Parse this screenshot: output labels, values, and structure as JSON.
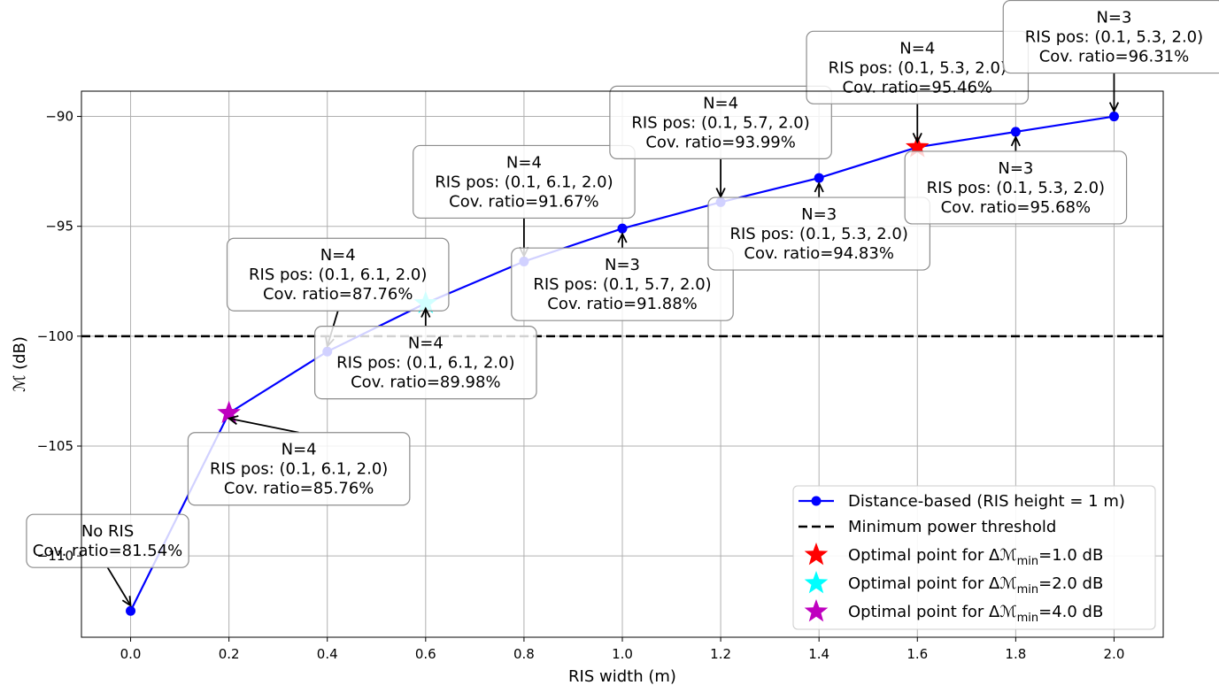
{
  "chart_data": {
    "type": "line",
    "xlabel": "RIS width (m)",
    "ylabel": "ℳ (dB)",
    "xlim": [
      -0.1,
      2.1
    ],
    "ylim": [
      -113.7,
      -88.85
    ],
    "x_ticks": [
      0.0,
      0.2,
      0.4,
      0.6,
      0.8,
      1.0,
      1.2,
      1.4,
      1.6,
      1.8,
      2.0
    ],
    "x_tick_labels": [
      "0.0",
      "0.2",
      "0.4",
      "0.6",
      "0.8",
      "1.0",
      "1.2",
      "1.4",
      "1.6",
      "1.8",
      "2.0"
    ],
    "y_ticks": [
      -110,
      -105,
      -100,
      -95,
      -90
    ],
    "y_tick_labels": [
      "−110",
      "−105",
      "−100",
      "−95",
      "−90"
    ],
    "grid": true,
    "legend_position": "lower-right",
    "series": [
      {
        "name": "Distance-based (RIS height = 1 m)",
        "color": "#0000ff",
        "marker": "circle",
        "x": [
          0.0,
          0.2,
          0.4,
          0.6,
          0.8,
          1.0,
          1.2,
          1.4,
          1.6,
          1.8,
          2.0
        ],
        "y": [
          -112.5,
          -103.5,
          -100.7,
          -98.5,
          -96.6,
          -95.1,
          -93.9,
          -92.8,
          -91.4,
          -90.7,
          -90.0
        ]
      }
    ],
    "threshold": {
      "name": "Minimum power threshold",
      "y": -100,
      "color": "#000000",
      "style": "dashed"
    },
    "optimal_points": [
      {
        "name_prefix": "Optimal point for Δℳ",
        "name_sub": "min",
        "name_suffix": "=1.0 dB",
        "x": 1.6,
        "y": -91.4,
        "color": "#ff0000"
      },
      {
        "name_prefix": "Optimal point for Δℳ",
        "name_sub": "min",
        "name_suffix": "=2.0 dB",
        "x": 0.6,
        "y": -98.5,
        "color": "#00ffff"
      },
      {
        "name_prefix": "Optimal point for Δℳ",
        "name_sub": "min",
        "name_suffix": "=4.0 dB",
        "x": 0.2,
        "y": -103.5,
        "color": "#bf00bf"
      }
    ],
    "annotations": [
      {
        "x": 0.0,
        "y": -112.5,
        "lines": [
          "No RIS",
          "Cov. ratio=81.54%"
        ]
      },
      {
        "x": 0.2,
        "y": -103.5,
        "lines": [
          "N=4",
          "RIS pos: (0.1, 6.1, 2.0)",
          "Cov. ratio=85.76%"
        ]
      },
      {
        "x": 0.4,
        "y": -100.7,
        "lines": [
          "N=4",
          "RIS pos: (0.1, 6.1, 2.0)",
          "Cov. ratio=87.76%"
        ]
      },
      {
        "x": 0.6,
        "y": -98.5,
        "lines": [
          "N=4",
          "RIS pos: (0.1, 6.1, 2.0)",
          "Cov. ratio=89.98%"
        ]
      },
      {
        "x": 0.8,
        "y": -96.6,
        "lines": [
          "N=4",
          "RIS pos: (0.1, 6.1, 2.0)",
          "Cov. ratio=91.67%"
        ]
      },
      {
        "x": 1.0,
        "y": -95.1,
        "lines": [
          "N=3",
          "RIS pos: (0.1, 5.7, 2.0)",
          "Cov. ratio=91.88%"
        ]
      },
      {
        "x": 1.2,
        "y": -93.9,
        "lines": [
          "N=4",
          "RIS pos: (0.1, 5.7, 2.0)",
          "Cov. ratio=93.99%"
        ]
      },
      {
        "x": 1.4,
        "y": -92.8,
        "lines": [
          "N=3",
          "RIS pos: (0.1, 5.3, 2.0)",
          "Cov. ratio=94.83%"
        ]
      },
      {
        "x": 1.6,
        "y": -91.4,
        "lines": [
          "N=4",
          "RIS pos: (0.1, 5.3, 2.0)",
          "Cov. ratio=95.46%"
        ]
      },
      {
        "x": 1.8,
        "y": -90.7,
        "lines": [
          "N=3",
          "RIS pos: (0.1, 5.3, 2.0)",
          "Cov. ratio=95.68%"
        ]
      },
      {
        "x": 2.0,
        "y": -90.0,
        "lines": [
          "N=3",
          "RIS pos: (0.1, 5.3, 2.0)",
          "Cov. ratio=96.31%"
        ]
      }
    ]
  }
}
